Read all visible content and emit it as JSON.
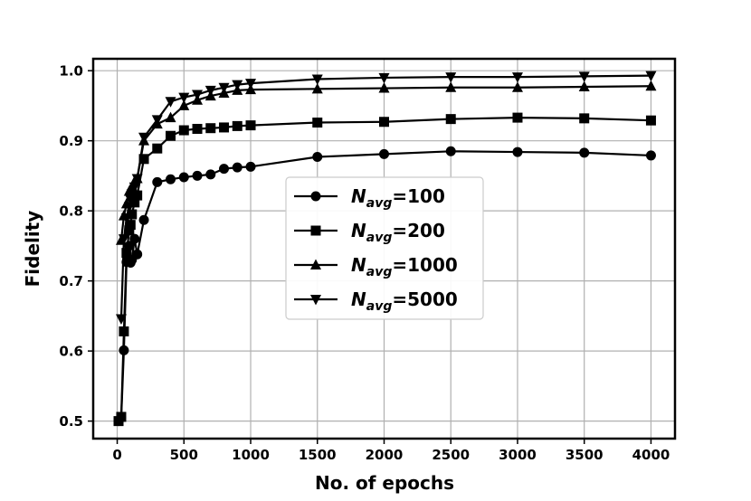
{
  "chart_data": {
    "type": "line",
    "title": "",
    "xlabel": "No. of epochs",
    "ylabel": "Fidelity",
    "xlim": [
      -180,
      4180
    ],
    "ylim": [
      0.475,
      1.017
    ],
    "xticks": [
      0,
      500,
      1000,
      1500,
      2000,
      2500,
      3000,
      3500,
      4000
    ],
    "xtick_labels": [
      "0",
      "500",
      "1000",
      "1500",
      "2000",
      "2500",
      "3000",
      "3500",
      "4000"
    ],
    "yticks": [
      0.5,
      0.6,
      0.7,
      0.8,
      0.9,
      1.0
    ],
    "ytick_labels": [
      "0.5",
      "0.6",
      "0.7",
      "0.8",
      "0.9",
      "1.0"
    ],
    "grid": true,
    "legend_position": "center",
    "series": [
      {
        "name": "100",
        "marker": "circle",
        "points": [
          [
            10,
            0.5
          ],
          [
            30,
            0.505
          ],
          [
            50,
            0.601
          ],
          [
            70,
            0.727
          ],
          [
            90,
            0.75
          ],
          [
            100,
            0.726
          ],
          [
            110,
            0.73
          ],
          [
            130,
            0.76
          ],
          [
            150,
            0.738
          ],
          [
            200,
            0.787
          ],
          [
            300,
            0.841
          ],
          [
            400,
            0.845
          ],
          [
            500,
            0.848
          ],
          [
            600,
            0.85
          ],
          [
            700,
            0.852
          ],
          [
            800,
            0.86
          ],
          [
            900,
            0.862
          ],
          [
            1000,
            0.863
          ],
          [
            1500,
            0.877
          ],
          [
            2000,
            0.881
          ],
          [
            2500,
            0.885
          ],
          [
            3000,
            0.884
          ],
          [
            3500,
            0.883
          ],
          [
            4000,
            0.879
          ]
        ]
      },
      {
        "name": "200",
        "marker": "square",
        "points": [
          [
            10,
            0.5
          ],
          [
            30,
            0.506
          ],
          [
            50,
            0.628
          ],
          [
            70,
            0.74
          ],
          [
            90,
            0.772
          ],
          [
            100,
            0.78
          ],
          [
            110,
            0.795
          ],
          [
            130,
            0.812
          ],
          [
            150,
            0.822
          ],
          [
            200,
            0.874
          ],
          [
            300,
            0.889
          ],
          [
            400,
            0.907
          ],
          [
            500,
            0.915
          ],
          [
            600,
            0.917
          ],
          [
            700,
            0.918
          ],
          [
            800,
            0.919
          ],
          [
            900,
            0.921
          ],
          [
            1000,
            0.922
          ],
          [
            1500,
            0.926
          ],
          [
            2000,
            0.927
          ],
          [
            2500,
            0.931
          ],
          [
            3000,
            0.933
          ],
          [
            3500,
            0.932
          ],
          [
            4000,
            0.929
          ]
        ]
      },
      {
        "name": "1000",
        "marker": "triangle-up",
        "points": [
          [
            30,
            0.758
          ],
          [
            50,
            0.793
          ],
          [
            70,
            0.81
          ],
          [
            90,
            0.828
          ],
          [
            100,
            0.83
          ],
          [
            110,
            0.834
          ],
          [
            130,
            0.842
          ],
          [
            150,
            0.846
          ],
          [
            200,
            0.9
          ],
          [
            300,
            0.924
          ],
          [
            400,
            0.933
          ],
          [
            500,
            0.95
          ],
          [
            600,
            0.958
          ],
          [
            700,
            0.964
          ],
          [
            800,
            0.968
          ],
          [
            900,
            0.972
          ],
          [
            1000,
            0.973
          ],
          [
            1500,
            0.974
          ],
          [
            2000,
            0.975
          ],
          [
            2500,
            0.976
          ],
          [
            3000,
            0.976
          ],
          [
            3500,
            0.977
          ],
          [
            4000,
            0.978
          ]
        ]
      },
      {
        "name": "5000",
        "marker": "triangle-down",
        "points": [
          [
            30,
            0.646
          ],
          [
            50,
            0.76
          ],
          [
            70,
            0.79
          ],
          [
            90,
            0.806
          ],
          [
            100,
            0.816
          ],
          [
            110,
            0.824
          ],
          [
            130,
            0.834
          ],
          [
            150,
            0.846
          ],
          [
            200,
            0.905
          ],
          [
            300,
            0.93
          ],
          [
            400,
            0.956
          ],
          [
            500,
            0.962
          ],
          [
            600,
            0.966
          ],
          [
            700,
            0.972
          ],
          [
            800,
            0.976
          ],
          [
            900,
            0.98
          ],
          [
            1000,
            0.982
          ],
          [
            1500,
            0.988
          ],
          [
            2000,
            0.99
          ],
          [
            2500,
            0.991
          ],
          [
            3000,
            0.991
          ],
          [
            3500,
            0.992
          ],
          [
            4000,
            0.993
          ]
        ]
      }
    ],
    "legend_prefix": "N",
    "legend_subscript": "avg",
    "legend_separator": "="
  }
}
